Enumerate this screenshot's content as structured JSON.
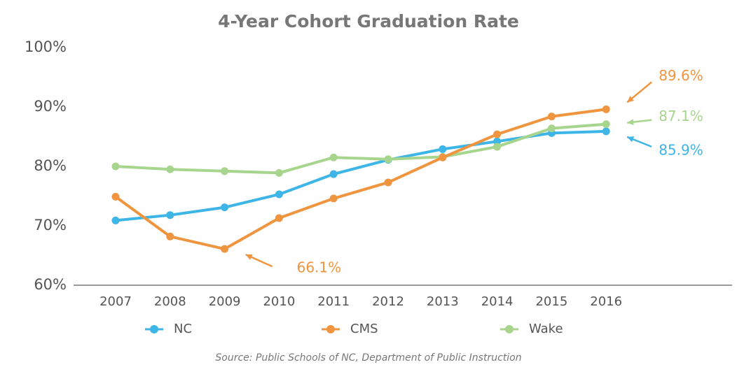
{
  "chart_data": {
    "type": "line",
    "title": "4-Year Cohort Graduation Rate",
    "source": "Source: Public Schools of NC, Department of Public Instruction",
    "categories": [
      "2007",
      "2008",
      "2009",
      "2010",
      "2011",
      "2012",
      "2013",
      "2014",
      "2015",
      "2016"
    ],
    "series": [
      {
        "name": "NC",
        "color": "#3db5e6",
        "values": [
          70.9,
          71.8,
          73.1,
          75.3,
          78.7,
          81.1,
          82.9,
          84.2,
          85.6,
          85.9
        ],
        "value_labels": [
          null,
          null,
          null,
          null,
          null,
          null,
          null,
          null,
          null,
          "85.9%"
        ]
      },
      {
        "name": "CMS",
        "color": "#f0953f",
        "values": [
          74.9,
          68.2,
          66.1,
          71.3,
          74.6,
          77.3,
          81.5,
          85.4,
          88.4,
          89.6
        ],
        "value_labels": [
          null,
          null,
          "66.1%",
          null,
          null,
          null,
          null,
          null,
          null,
          "89.6%"
        ]
      },
      {
        "name": "Wake",
        "color": "#a8d58e",
        "values": [
          80.0,
          79.5,
          79.2,
          78.9,
          81.5,
          81.2,
          81.6,
          83.3,
          86.4,
          87.1
        ],
        "value_labels": [
          null,
          null,
          null,
          null,
          null,
          null,
          null,
          null,
          null,
          "87.1%"
        ]
      }
    ],
    "ylim": [
      60,
      100
    ],
    "yticks": [
      {
        "value": 60,
        "label": "60%"
      },
      {
        "value": 70,
        "label": "70%"
      },
      {
        "value": 80,
        "label": "80%"
      },
      {
        "value": 90,
        "label": "90%"
      },
      {
        "value": 100,
        "label": "100%"
      }
    ],
    "grid": false,
    "legend": "bottom"
  }
}
